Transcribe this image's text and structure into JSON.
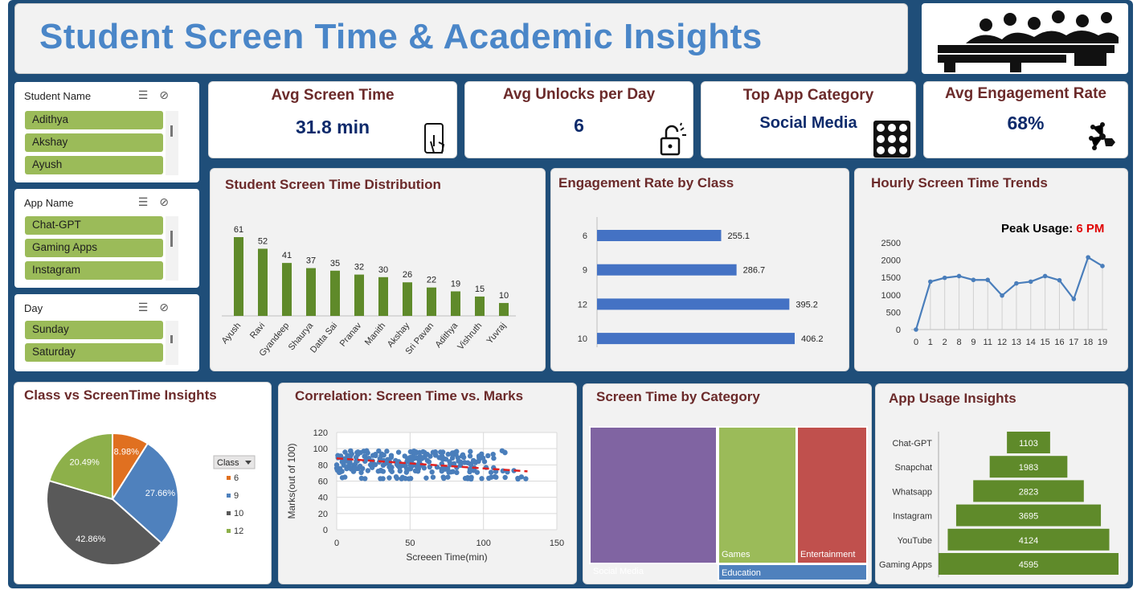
{
  "header": {
    "title": "Student Screen Time & Academic Insights"
  },
  "slicers": [
    {
      "label": "Student Name",
      "items": [
        "Adithya",
        "Akshay",
        "Ayush"
      ]
    },
    {
      "label": "App Name",
      "items": [
        "Chat-GPT",
        "Gaming Apps",
        "Instagram"
      ]
    },
    {
      "label": "Day",
      "items": [
        "Sunday",
        "Saturday"
      ]
    }
  ],
  "kpis": {
    "screen": {
      "label": "Avg Screen Time",
      "value": "31.8 min"
    },
    "unlocks": {
      "label": "Avg Unlocks per Day",
      "value": "6"
    },
    "category": {
      "label": "Top App Category",
      "value": "Social Media"
    },
    "engagement": {
      "label": "Avg Engagement Rate",
      "value": "68%"
    }
  },
  "panels": {
    "dist": "Student Screen Time Distribution",
    "eng": "Engagement Rate by Class",
    "hourly": "Hourly Screen Time Trends",
    "pie": "Class vs ScreenTime Insights",
    "corr": "Correlation: Screen Time vs. Marks",
    "cat": "Screen Time by Category",
    "app": "App Usage Insights"
  },
  "peak": {
    "label": "Peak Usage:",
    "value": "6 PM",
    "value_color": "#e00000"
  },
  "colors": {
    "bar_green": "#5f8a2a",
    "bar_blue": "#4472c4",
    "line": "#4a7ebb",
    "title_red": "#6b2a2a",
    "kpi_blue": "#0d2a6b"
  },
  "chart_data": [
    {
      "type": "bar",
      "title": "Student Screen Time Distribution",
      "categories": [
        "Ayush",
        "Ravi",
        "Gyandeep",
        "Shaurya",
        "Datta Sai",
        "Pranav",
        "Manith",
        "Akshay",
        "Sri Pavan",
        "Adithya",
        "Vishruth",
        "Yuvraj"
      ],
      "values": [
        61,
        52,
        41,
        37,
        35,
        32,
        30,
        26,
        22,
        19,
        15,
        10
      ]
    },
    {
      "type": "bar",
      "orientation": "horizontal",
      "title": "Engagement Rate by Class",
      "categories": [
        "6",
        "9",
        "12",
        "10"
      ],
      "values": [
        255.1,
        286.7,
        395.2,
        406.2
      ]
    },
    {
      "type": "line",
      "title": "Hourly Screen Time Trends",
      "x": [
        0,
        1,
        2,
        8,
        9,
        11,
        12,
        13,
        14,
        15,
        16,
        17,
        18,
        19
      ],
      "values": [
        0,
        1380,
        1490,
        1540,
        1430,
        1430,
        980,
        1330,
        1380,
        1540,
        1420,
        880,
        2080,
        1830
      ],
      "ylim": [
        0,
        2500
      ],
      "yticks": [
        0,
        500,
        1000,
        1500,
        2000,
        2500
      ]
    },
    {
      "type": "pie",
      "title": "Class vs ScreenTime Insights",
      "legend_title": "Class",
      "categories": [
        "6",
        "9",
        "10",
        "12"
      ],
      "values": [
        8.98,
        27.66,
        42.86,
        20.49
      ],
      "labels": [
        "8.98%",
        "27.66%",
        "42.86%",
        "20.49%"
      ],
      "colors": [
        "#e07020",
        "#4f81bd",
        "#595959",
        "#8db04a"
      ]
    },
    {
      "type": "scatter",
      "title": "Correlation: Screen Time vs. Marks",
      "xlabel": "Screeen Time(min)",
      "ylabel": "Marks(out of 100)",
      "xlim": [
        0,
        150
      ],
      "ylim": [
        0,
        120
      ],
      "xticks": [
        0,
        50,
        100,
        150
      ],
      "yticks": [
        0,
        20,
        40,
        60,
        80,
        100,
        120
      ],
      "trend": [
        [
          0,
          88
        ],
        [
          130,
          72
        ]
      ]
    },
    {
      "type": "treemap",
      "title": "Screen Time by Category",
      "categories": [
        "Social Media",
        "Games",
        "Entertainment",
        "Education"
      ],
      "colors": [
        "#8064a2",
        "#9bbb59",
        "#c0504d",
        "#4f81bd"
      ]
    },
    {
      "type": "bar",
      "title": "App Usage Insights",
      "categories": [
        "Chat-GPT",
        "Snapchat",
        "Whatsapp",
        "Instagram",
        "YouTube",
        "Gaming Apps"
      ],
      "values": [
        1103,
        1983,
        2823,
        3695,
        4124,
        4595
      ]
    }
  ]
}
